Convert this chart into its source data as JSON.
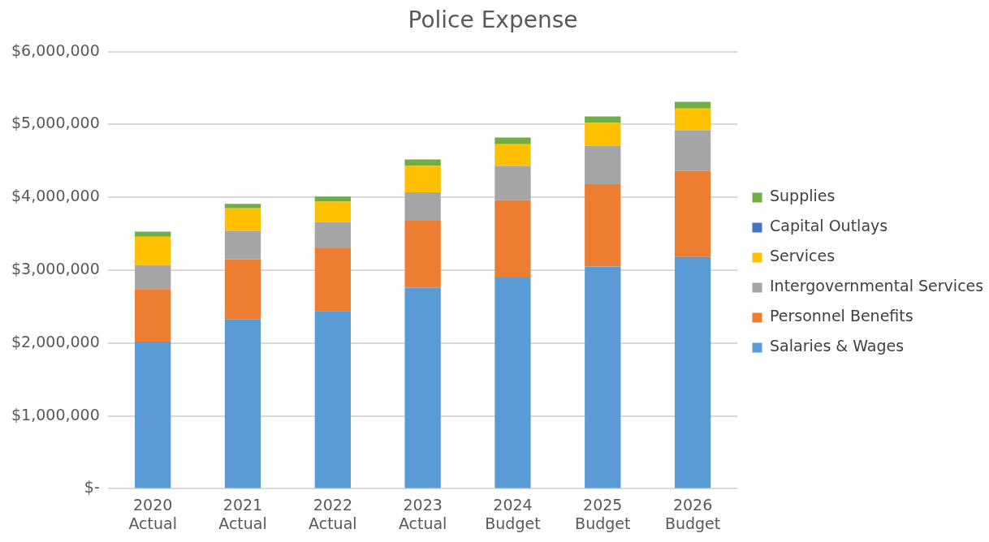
{
  "chart_data": {
    "type": "bar",
    "title": "Police Expense",
    "stacked": true,
    "categories": [
      "2020 Actual",
      "2021 Actual",
      "2022 Actual",
      "2023 Actual",
      "2024 Budget",
      "2025 Budget",
      "2026 Budget"
    ],
    "series": [
      {
        "name": "Salaries & Wages",
        "color": "#5b9bd5",
        "values": [
          2020000,
          2330000,
          2440000,
          2760000,
          2900000,
          3050000,
          3180000
        ]
      },
      {
        "name": "Personnel Benefits",
        "color": "#ed7d31",
        "values": [
          720000,
          820000,
          860000,
          920000,
          1060000,
          1130000,
          1180000
        ]
      },
      {
        "name": "Intergovernmental Services",
        "color": "#a5a5a5",
        "values": [
          330000,
          390000,
          360000,
          390000,
          470000,
          530000,
          560000
        ]
      },
      {
        "name": "Services",
        "color": "#ffc000",
        "values": [
          390000,
          310000,
          280000,
          360000,
          300000,
          310000,
          300000
        ]
      },
      {
        "name": "Capital Outlays",
        "color": "#4472c4",
        "values": [
          0,
          0,
          0,
          0,
          0,
          0,
          0
        ]
      },
      {
        "name": "Supplies",
        "color": "#70ad47",
        "values": [
          70000,
          60000,
          70000,
          90000,
          90000,
          90000,
          90000
        ]
      }
    ],
    "ylim": [
      0,
      6000000
    ],
    "yticks": [
      {
        "value": 0,
        "label": "$-"
      },
      {
        "value": 1000000,
        "label": "$1,000,000"
      },
      {
        "value": 2000000,
        "label": "$2,000,000"
      },
      {
        "value": 3000000,
        "label": "$3,000,000"
      },
      {
        "value": 4000000,
        "label": "$4,000,000"
      },
      {
        "value": 5000000,
        "label": "$5,000,000"
      },
      {
        "value": 6000000,
        "label": "$6,000,000"
      }
    ],
    "grid": "y",
    "legend": "right"
  }
}
